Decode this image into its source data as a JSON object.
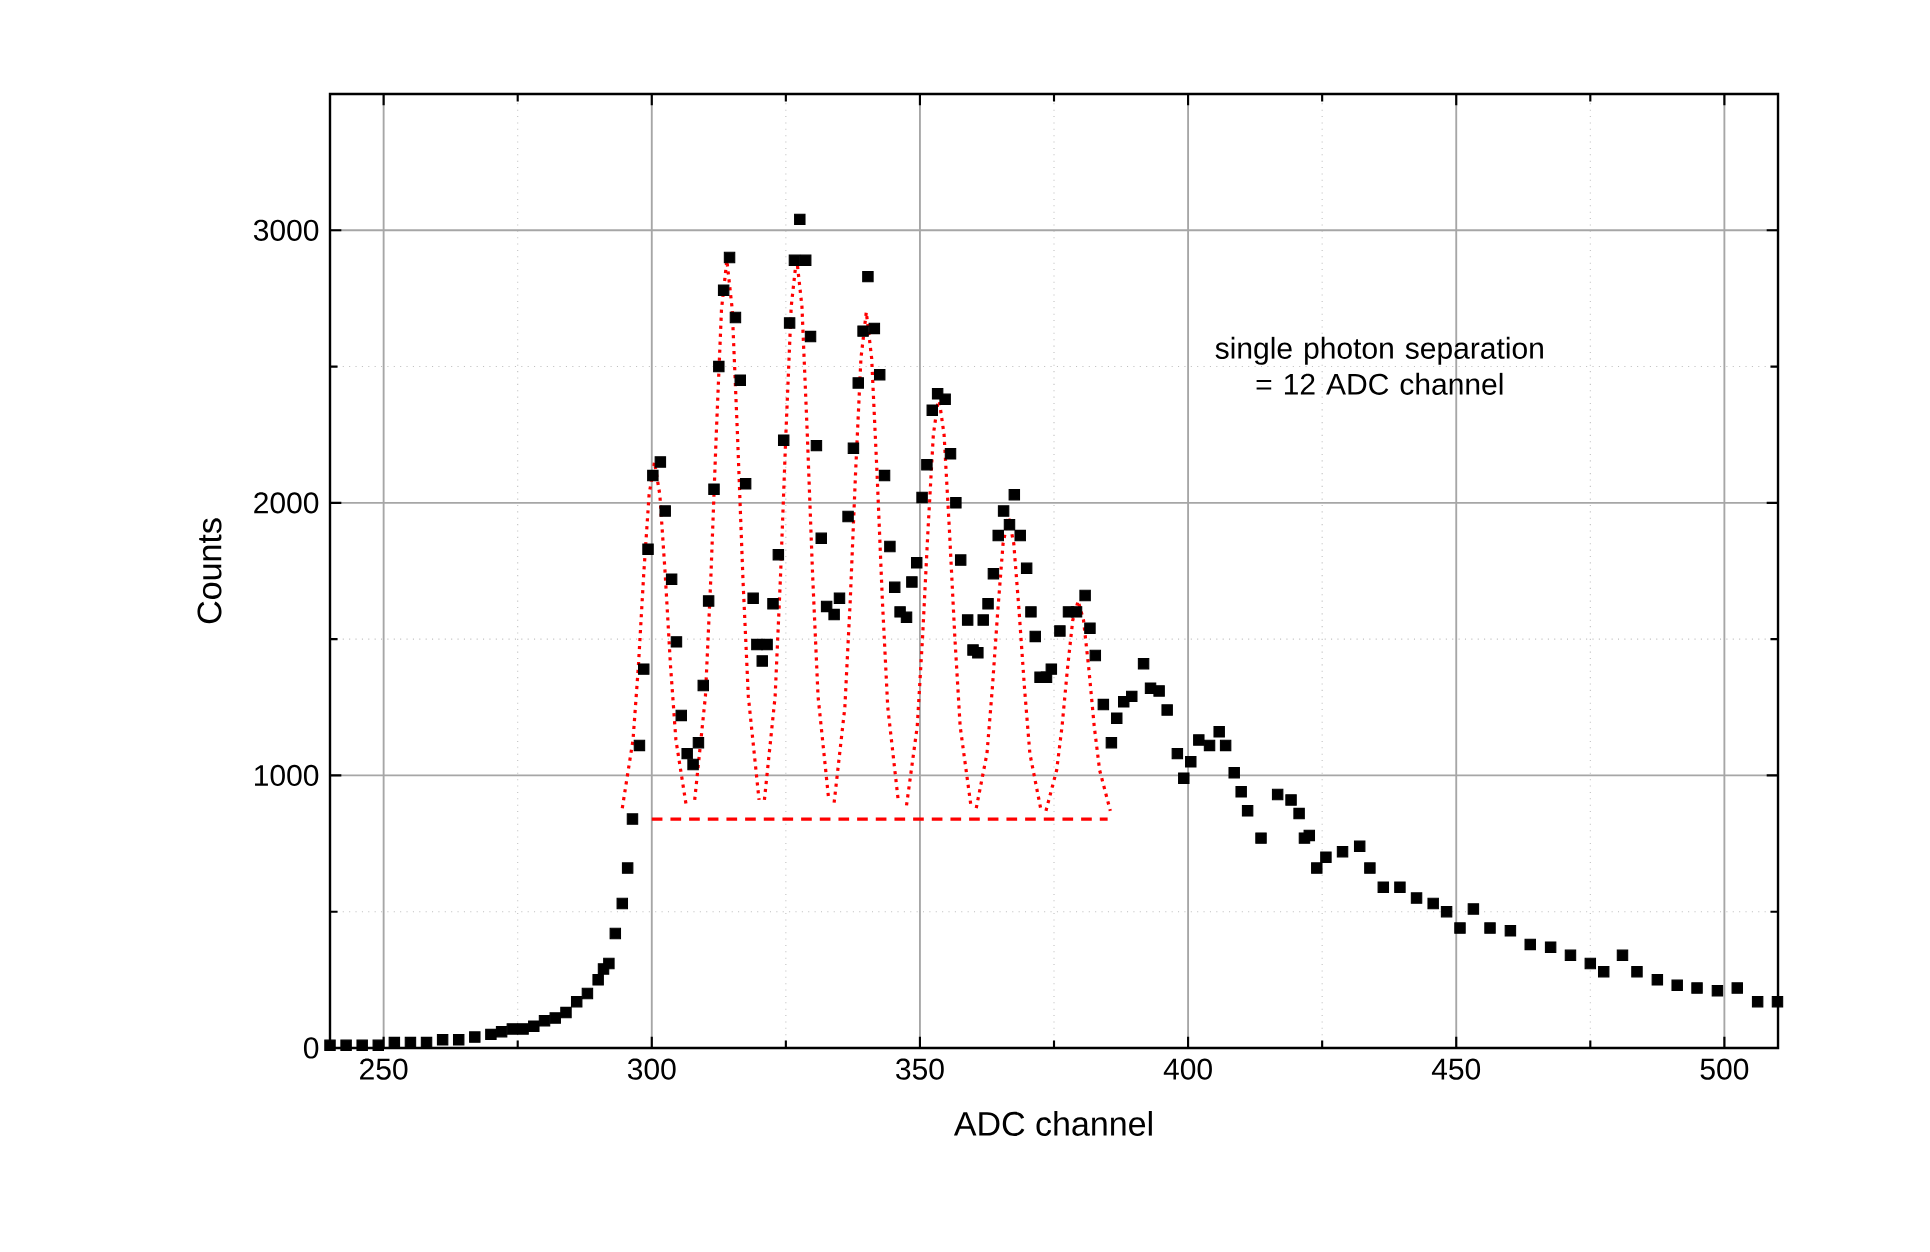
{
  "chart_data": {
    "type": "scatter",
    "xlabel": "ADC channel",
    "ylabel": "Counts",
    "xlim": [
      240,
      510
    ],
    "ylim": [
      0,
      3500
    ],
    "xticks": [
      250,
      300,
      350,
      400,
      450,
      500
    ],
    "yticks": [
      0,
      1000,
      2000,
      3000
    ],
    "grid": true,
    "annotations": [
      "single photon separation = 12 ADC channel"
    ],
    "series": [
      {
        "color": "#000000",
        "marker": "square",
        "x": [
          240,
          243,
          246,
          249,
          252,
          255,
          258,
          261,
          264,
          267,
          270,
          272,
          274,
          276,
          278,
          280,
          282,
          284,
          286,
          288,
          290,
          291,
          292,
          293.2,
          294.5,
          295.5,
          296.4,
          297.7,
          298.5,
          299.3,
          300.2,
          301.6,
          302.5,
          303.7,
          304.6,
          305.5,
          306.6,
          307.7,
          308.7,
          309.6,
          310.6,
          311.6,
          312.5,
          313.4,
          314.5,
          315.6,
          316.5,
          317.5,
          318.9,
          319.6,
          320.6,
          321.5,
          322.6,
          323.6,
          324.6,
          325.7,
          326.6,
          327.6,
          328.7,
          329.6,
          330.7,
          331.6,
          332.6,
          334,
          335,
          336.6,
          337.6,
          338.5,
          339.4,
          340.3,
          341.5,
          342.5,
          343.4,
          344.4,
          345.3,
          346.3,
          347.5,
          348.5,
          349.4,
          350.4,
          351.3,
          352.3,
          353.3,
          354.7,
          355.7,
          356.7,
          357.6,
          358.9,
          359.9,
          360.8,
          361.8,
          362.7,
          363.7,
          364.6,
          365.6,
          366.7,
          367.6,
          368.7,
          369.9,
          370.7,
          371.5,
          372.4,
          373.6,
          374.5,
          376.1,
          377.7,
          379.2,
          380.8,
          381.7,
          382.7,
          384.2,
          385.7,
          386.7,
          388,
          389.5,
          391.7,
          393,
          394.6,
          396.1,
          398,
          399.2,
          400.5,
          402,
          404,
          405.8,
          407,
          408.6,
          409.9,
          411.1,
          413.6,
          416.7,
          419.2,
          420.7,
          421.7,
          422.6,
          424,
          425.7,
          428.8,
          432,
          433.9,
          436.4,
          439.5,
          442.6,
          445.7,
          448.2,
          450.7,
          453.2,
          456.3,
          460.1,
          463.8,
          467.6,
          471.3,
          475,
          477.5,
          481,
          483.7,
          487.5,
          491.2,
          494.9,
          498.7,
          502.4,
          506.2,
          509.9
        ],
        "values": [
          10,
          10,
          10,
          10,
          20,
          20,
          20,
          30,
          30,
          40,
          50,
          60,
          70,
          70,
          80,
          100,
          110,
          130,
          170,
          200,
          250,
          290,
          310,
          420,
          530,
          660,
          840,
          1110,
          1390,
          1830,
          2100,
          2150,
          1970,
          1720,
          1490,
          1220,
          1080,
          1040,
          1120,
          1330,
          1640,
          2050,
          2500,
          2780,
          2900,
          2680,
          2450,
          2070,
          1650,
          1480,
          1420,
          1480,
          1630,
          1810,
          2230,
          2660,
          2890,
          3040,
          2890,
          2610,
          2210,
          1870,
          1620,
          1590,
          1650,
          1950,
          2200,
          2440,
          2630,
          2830,
          2640,
          2470,
          2100,
          1840,
          1690,
          1600,
          1580,
          1710,
          1780,
          2020,
          2140,
          2340,
          2400,
          2380,
          2180,
          2000,
          1790,
          1570,
          1460,
          1450,
          1570,
          1630,
          1740,
          1880,
          1970,
          1920,
          2030,
          1880,
          1760,
          1600,
          1510,
          1360,
          1360,
          1390,
          1530,
          1600,
          1600,
          1660,
          1540,
          1440,
          1260,
          1120,
          1210,
          1270,
          1290,
          1410,
          1320,
          1310,
          1240,
          1080,
          990,
          1050,
          1130,
          1110,
          1160,
          1110,
          1010,
          940,
          870,
          770,
          930,
          910,
          860,
          770,
          780,
          660,
          700,
          720,
          740,
          660,
          590,
          590,
          550,
          530,
          500,
          440,
          510,
          440,
          430,
          380,
          370,
          340,
          310,
          280,
          340,
          280,
          250,
          230,
          220,
          210,
          220,
          170,
          170
        ]
      },
      {
        "type": "line",
        "color": "#ff0000",
        "marker": "none",
        "line_style": "dotted",
        "x": [
          294.5,
          296.5,
          297.5,
          298.5,
          299.5,
          300.5,
          301.5,
          302.5,
          303.5,
          304.5,
          306.5
        ],
        "values": [
          880,
          1130,
          1400,
          1740,
          2030,
          2150,
          2030,
          1740,
          1400,
          1130,
          880
        ]
      },
      {
        "type": "line",
        "color": "#ff0000",
        "marker": "none",
        "line_style": "dotted",
        "x": [
          308,
          310,
          311,
          312,
          313,
          314,
          315,
          316,
          317,
          318,
          320
        ],
        "values": [
          910,
          1290,
          1720,
          2240,
          2710,
          2890,
          2710,
          2240,
          1720,
          1290,
          910
        ]
      },
      {
        "type": "line",
        "color": "#ff0000",
        "marker": "none",
        "line_style": "dotted",
        "x": [
          321,
          323,
          324,
          325,
          326,
          327,
          328,
          329,
          330,
          331,
          333
        ],
        "values": [
          910,
          1290,
          1730,
          2250,
          2720,
          2900,
          2720,
          2250,
          1730,
          1290,
          910
        ]
      },
      {
        "type": "line",
        "color": "#ff0000",
        "marker": "none",
        "line_style": "dotted",
        "x": [
          334,
          336,
          337,
          338,
          339,
          340,
          341,
          342,
          343,
          344,
          346
        ],
        "values": [
          900,
          1250,
          1640,
          2110,
          2530,
          2700,
          2530,
          2110,
          1640,
          1250,
          900
        ]
      },
      {
        "type": "line",
        "color": "#ff0000",
        "marker": "none",
        "line_style": "dotted",
        "x": [
          347.5,
          349.5,
          350.5,
          351.5,
          352.5,
          353.5,
          354.5,
          355.5,
          356.5,
          357.5,
          359.5
        ],
        "values": [
          890,
          1180,
          1510,
          1900,
          2250,
          2390,
          2250,
          1900,
          1510,
          1180,
          890
        ]
      },
      {
        "type": "line",
        "color": "#ff0000",
        "marker": "none",
        "line_style": "dotted",
        "x": [
          360.5,
          362.5,
          363.5,
          364.5,
          365.5,
          366.5,
          367.5,
          368.5,
          369.5,
          370.5,
          372.5
        ],
        "values": [
          880,
          1080,
          1320,
          1600,
          1850,
          1950,
          1850,
          1600,
          1320,
          1080,
          880
        ]
      },
      {
        "type": "line",
        "color": "#ff0000",
        "marker": "none",
        "line_style": "dotted",
        "x": [
          373.5,
          375.5,
          376.5,
          377.5,
          378.5,
          379.5,
          380.5,
          381.5,
          382.5,
          383.5,
          385.5
        ],
        "values": [
          870,
          1020,
          1180,
          1390,
          1570,
          1640,
          1570,
          1390,
          1180,
          1020,
          870
        ]
      },
      {
        "type": "line",
        "color": "#ff0000",
        "marker": "none",
        "line_style": "dashed",
        "x": [
          300,
          385
        ],
        "values": [
          840,
          840
        ]
      }
    ]
  }
}
